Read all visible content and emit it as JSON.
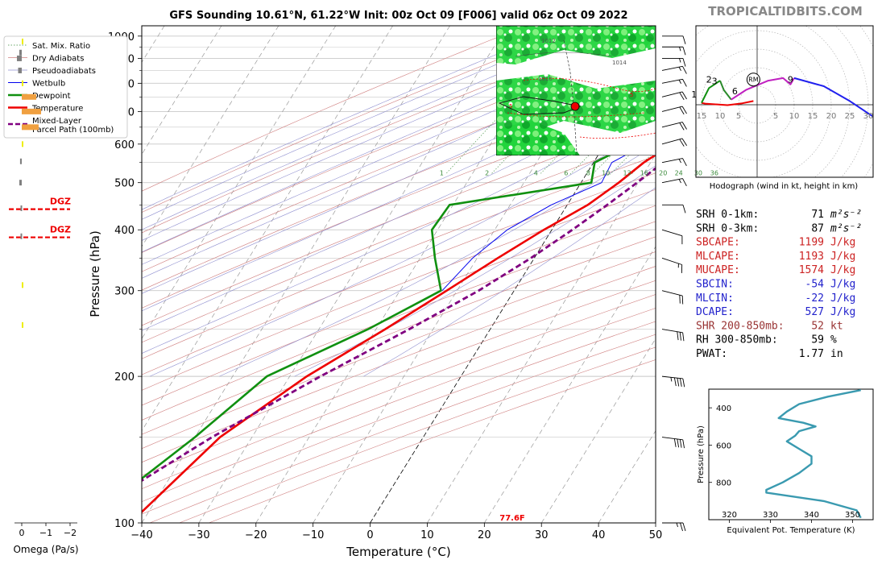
{
  "title": "GFS Sounding 10.61°N, 61.22°W Init: 00z Oct 09 [F006] valid 06z Oct 09 2022",
  "watermark": "TROPICALTIDBITS.COM",
  "colors": {
    "temperature": "#ee0000",
    "dewpoint": "#109010",
    "wetbulb": "#0000ee",
    "parcel": "#800080",
    "dry_adiabat": "#d08080",
    "pseudo_adiabat": "#9090d0",
    "mixing_ratio": "#3a8a3a",
    "red_param": "#cc2222",
    "blue_param": "#2222cc",
    "brown_param": "#993333",
    "theta_e": "#3a9ab0",
    "dgz": "#ee0000"
  },
  "legend": [
    {
      "label": "Sat. Mix. Ratio",
      "style": "sat-mix"
    },
    {
      "label": "Dry Adiabats",
      "style": "dry"
    },
    {
      "label": "Pseudoadiabats",
      "style": "pseudo"
    },
    {
      "label": "Wetbulb",
      "style": "wetbulb"
    },
    {
      "label": "Dewpoint",
      "style": "dewpoint"
    },
    {
      "label": "Temperature",
      "style": "temperature"
    },
    {
      "label": "Mixed-Layer",
      "label2": "Parcel Path (100mb)",
      "style": "parcel"
    }
  ],
  "omega": {
    "xlabel": "Omega (Pa/s)",
    "ticks": [
      {
        "v": 0,
        "label": "0"
      },
      {
        "v": -1,
        "label": "−1"
      },
      {
        "v": -2,
        "label": "−2"
      }
    ],
    "dgz_label": "DGZ",
    "dgz_levels": [
      386,
      441
    ],
    "bars": [
      {
        "p": 255,
        "v": -0.05,
        "color": "#eeee00"
      },
      {
        "p": 308,
        "v": -0.05,
        "color": "#eeee00"
      },
      {
        "p": 388,
        "v": 0.05,
        "color": "#808080"
      },
      {
        "p": 443,
        "v": 0.05,
        "color": "#808080"
      },
      {
        "p": 500,
        "v": 0.1,
        "color": "#808080"
      },
      {
        "p": 553,
        "v": 0.07,
        "color": "#808080"
      },
      {
        "p": 600,
        "v": -0.05,
        "color": "#eeee00"
      },
      {
        "p": 650,
        "v": -0.7,
        "color": "#f0a040"
      },
      {
        "p": 700,
        "v": -0.8,
        "color": "#f0a040"
      },
      {
        "p": 750,
        "v": -0.6,
        "color": "#f0a040"
      },
      {
        "p": 800,
        "v": -0.05,
        "color": "#eeee00"
      },
      {
        "p": 850,
        "v": 0.15,
        "color": "#808080"
      },
      {
        "p": 900,
        "v": 0.2,
        "color": "#808080"
      },
      {
        "p": 925,
        "v": 0.1,
        "color": "#808080"
      },
      {
        "p": 975,
        "v": -0.05,
        "color": "#eeee00"
      }
    ]
  },
  "chart_data": [
    {
      "type": "line",
      "subtype": "skew-t log-p",
      "xlabel": "Temperature (°C)",
      "ylabel": "Pressure (hPa)",
      "xlim": [
        -40,
        50
      ],
      "ylim": [
        1050,
        100
      ],
      "x_ticks": [
        {
          "v": -40,
          "label": "−40"
        },
        {
          "v": -30,
          "label": "−30"
        },
        {
          "v": -20,
          "label": "−20"
        },
        {
          "v": -10,
          "label": "−10"
        },
        {
          "v": 0,
          "label": "0"
        },
        {
          "v": 10,
          "label": "10"
        },
        {
          "v": 20,
          "label": "20"
        },
        {
          "v": 30,
          "label": "30"
        },
        {
          "v": 40,
          "label": "40"
        },
        {
          "v": 50,
          "label": "50"
        }
      ],
      "y_ticks": [
        {
          "v": 100,
          "label": "100"
        },
        {
          "v": 200,
          "label": "200"
        },
        {
          "v": 300,
          "label": "300"
        },
        {
          "v": 400,
          "label": "400"
        },
        {
          "v": 500,
          "label": "500"
        },
        {
          "v": 600,
          "label": "600"
        },
        {
          "v": 700,
          "label": "700"
        },
        {
          "v": 800,
          "label": "800"
        },
        {
          "v": 900,
          "label": "900"
        },
        {
          "v": 1000,
          "label": "1000"
        }
      ],
      "isobars": [
        100,
        150,
        200,
        250,
        300,
        350,
        400,
        450,
        500,
        550,
        600,
        650,
        700,
        750,
        800,
        850,
        900,
        950,
        1000
      ],
      "mixing_ratio_labels": [
        "1",
        "2",
        "4",
        "6",
        "8",
        "10",
        "13",
        "16",
        "20",
        "24",
        "30",
        "36"
      ],
      "mixing_ratio_values": [
        1,
        2,
        4,
        6,
        8,
        10,
        13,
        16,
        20,
        24,
        30,
        36
      ],
      "surface_temp_label": "77.6F",
      "series": [
        {
          "name": "Temperature",
          "points": [
            [
              1000,
              25.6
            ],
            [
              975,
              25.2
            ],
            [
              950,
              24
            ],
            [
              925,
              24.4
            ],
            [
              900,
              25.6
            ],
            [
              875,
              26
            ],
            [
              850,
              25.2
            ],
            [
              800,
              22.6
            ],
            [
              750,
              19.4
            ],
            [
              700,
              16.8
            ],
            [
              650,
              14.6
            ],
            [
              600,
              11.8
            ],
            [
              550,
              8.8
            ],
            [
              500,
              6.6
            ],
            [
              450,
              3.6
            ],
            [
              400,
              -1.4
            ],
            [
              350,
              -6.4
            ],
            [
              300,
              -11.8
            ],
            [
              250,
              -18.4
            ],
            [
              200,
              -27
            ],
            [
              150,
              -35.6
            ],
            [
              100,
              -42
            ]
          ]
        },
        {
          "name": "Dewpoint",
          "points": [
            [
              1000,
              23.4
            ],
            [
              975,
              23.2
            ],
            [
              950,
              22.8
            ],
            [
              925,
              20.8
            ],
            [
              900,
              14.6
            ],
            [
              875,
              9.8
            ],
            [
              850,
              6.6
            ],
            [
              800,
              4.4
            ],
            [
              750,
              11.4
            ],
            [
              700,
              10.6
            ],
            [
              650,
              8.6
            ],
            [
              600,
              4.6
            ],
            [
              550,
              0.2
            ],
            [
              500,
              1.8
            ],
            [
              450,
              -20.6
            ],
            [
              400,
              -21
            ],
            [
              350,
              -17.4
            ],
            [
              300,
              -12.8
            ],
            [
              250,
              -21.4
            ],
            [
              200,
              -34
            ],
            [
              150,
              -40
            ],
            [
              100,
              -50
            ]
          ]
        },
        {
          "name": "Wetbulb",
          "points": [
            [
              1000,
              24
            ],
            [
              950,
              23.2
            ],
            [
              900,
              20
            ],
            [
              850,
              15
            ],
            [
              800,
              9.8
            ],
            [
              750,
              13
            ],
            [
              700,
              12
            ],
            [
              650,
              10.4
            ],
            [
              600,
              7.2
            ],
            [
              550,
              3.2
            ],
            [
              500,
              3.6
            ],
            [
              450,
              -2.8
            ],
            [
              400,
              -7.8
            ],
            [
              350,
              -10.8
            ],
            [
              300,
              -12.6
            ]
          ]
        },
        {
          "name": "Mixed-Layer Parcel Path (100mb)",
          "points": [
            [
              1010,
              26.2
            ],
            [
              975,
              24
            ],
            [
              950,
              23.2
            ],
            [
              900,
              22
            ],
            [
              850,
              21
            ],
            [
              800,
              20
            ],
            [
              750,
              18.8
            ],
            [
              700,
              17.2
            ],
            [
              650,
              15.8
            ],
            [
              600,
              14.2
            ],
            [
              550,
              12.2
            ],
            [
              500,
              9.8
            ],
            [
              450,
              7
            ],
            [
              400,
              3.6
            ],
            [
              350,
              -0.6
            ],
            [
              300,
              -6.2
            ],
            [
              250,
              -14.2
            ],
            [
              200,
              -24.6
            ],
            [
              150,
              -37
            ],
            [
              100,
              -52
            ]
          ]
        }
      ]
    },
    {
      "type": "line",
      "subtype": "hodograph",
      "xlabel": "Hodograph (wind in kt, height in km)",
      "ring_labels": [
        "15",
        "10",
        "5",
        "5",
        "10",
        "15",
        "20",
        "25",
        "30"
      ],
      "rm_label": "RM",
      "height_labels": [
        "1",
        "2",
        "3",
        "6",
        "9"
      ],
      "series": [
        {
          "name": "0-1 km",
          "color": "#ee0000",
          "points": [
            [
              -1,
              1
            ],
            [
              -4,
              0.4
            ],
            [
              -8,
              -0.1
            ],
            [
              -14,
              0.3
            ],
            [
              -15,
              0.5
            ]
          ]
        },
        {
          "name": "1-3 km",
          "color": "#109010",
          "points": [
            [
              -15,
              0.5
            ],
            [
              -14,
              2.5
            ],
            [
              -13,
              4.5
            ],
            [
              -10,
              6.5
            ]
          ]
        },
        {
          "name": "3-6 km",
          "color": "#2a8a2a",
          "points": [
            [
              -10,
              6.5
            ],
            [
              -9,
              4
            ],
            [
              -7,
              1.4
            ]
          ]
        },
        {
          "name": "6-9 km",
          "color": "#c020c0",
          "points": [
            [
              -7,
              1.4
            ],
            [
              -3,
              4
            ],
            [
              3,
              6.5
            ],
            [
              7,
              7.2
            ],
            [
              9,
              5.5
            ],
            [
              10,
              7.2
            ]
          ]
        },
        {
          "name": "9-12 km",
          "color": "#2020ee",
          "points": [
            [
              10,
              7.2
            ],
            [
              18,
              5
            ],
            [
              25,
              1
            ],
            [
              31,
              -3
            ],
            [
              33,
              -4.5
            ]
          ]
        }
      ],
      "rm_point": [
        -1,
        6.8
      ],
      "height_label_positions": [
        [
          -17,
          2
        ],
        [
          -13,
          6
        ],
        [
          -11.5,
          5.5
        ],
        [
          -6,
          2.8
        ],
        [
          9,
          6
        ]
      ]
    },
    {
      "type": "line",
      "subtype": "theta-e profile",
      "xlabel": "Equivalent Pot. Temperature (K)",
      "ylabel": "Pressure (hPa)",
      "xlim": [
        315,
        355
      ],
      "ylim": [
        1000,
        300
      ],
      "x_ticks": [
        {
          "v": 320,
          "label": "320"
        },
        {
          "v": 330,
          "label": "330"
        },
        {
          "v": 340,
          "label": "340"
        },
        {
          "v": 350,
          "label": "350"
        }
      ],
      "y_ticks": [
        {
          "v": 400,
          "label": "400"
        },
        {
          "v": 600,
          "label": "600"
        },
        {
          "v": 800,
          "label": "800"
        }
      ],
      "points": [
        [
          305,
          352
        ],
        [
          340,
          344
        ],
        [
          380,
          337
        ],
        [
          420,
          334
        ],
        [
          455,
          332
        ],
        [
          480,
          338
        ],
        [
          500,
          341
        ],
        [
          525,
          337
        ],
        [
          550,
          336
        ],
        [
          580,
          334
        ],
        [
          620,
          337
        ],
        [
          660,
          340
        ],
        [
          700,
          340
        ],
        [
          750,
          337
        ],
        [
          800,
          333
        ],
        [
          840,
          329
        ],
        [
          855,
          329
        ],
        [
          900,
          343
        ],
        [
          950,
          351
        ],
        [
          990,
          352
        ]
      ]
    }
  ],
  "params": [
    {
      "label": "SRH 0-1km:",
      "value": "71",
      "unit": "m²s⁻²",
      "color": "#000000"
    },
    {
      "label": "SRH 0-3km:",
      "value": "87",
      "unit": "m²s⁻²",
      "color": "#000000"
    },
    {
      "label": "SBCAPE:",
      "value": "1199",
      "unit": "J/kg",
      "color": "#cc2222"
    },
    {
      "label": "MLCAPE:",
      "value": "1193",
      "unit": "J/kg",
      "color": "#cc2222"
    },
    {
      "label": "MUCAPE:",
      "value": "1574",
      "unit": "J/kg",
      "color": "#cc2222"
    },
    {
      "label": "SBCIN:",
      "value": "-54",
      "unit": "J/kg",
      "color": "#2222cc"
    },
    {
      "label": "MLCIN:",
      "value": "-22",
      "unit": "J/kg",
      "color": "#2222cc"
    },
    {
      "label": "DCAPE:",
      "value": "527",
      "unit": "J/kg",
      "color": "#2222cc"
    },
    {
      "label": "SHR 200-850mb:",
      "value": "52",
      "unit": "kt",
      "color": "#993333"
    },
    {
      "label": "RH 300-850mb:",
      "value": "59",
      "unit": "%",
      "color": "#000000"
    },
    {
      "label": "PWAT:",
      "value": "1.77",
      "unit": "in",
      "color": "#000000"
    }
  ],
  "wind_barbs": [
    {
      "p": 100,
      "u": -25,
      "v": 0
    },
    {
      "p": 150,
      "u": -40,
      "v": 5
    },
    {
      "p": 200,
      "u": -45,
      "v": 5
    },
    {
      "p": 250,
      "u": -30,
      "v": 5
    },
    {
      "p": 300,
      "u": -20,
      "v": 5
    },
    {
      "p": 350,
      "u": -15,
      "v": 5
    },
    {
      "p": 400,
      "u": -10,
      "v": 3
    },
    {
      "p": 450,
      "u": -10,
      "v": 0
    },
    {
      "p": 500,
      "u": -15,
      "v": -3
    },
    {
      "p": 550,
      "u": -15,
      "v": -3
    },
    {
      "p": 600,
      "u": -18,
      "v": -5
    },
    {
      "p": 650,
      "u": -20,
      "v": -5
    },
    {
      "p": 700,
      "u": -20,
      "v": -5
    },
    {
      "p": 750,
      "u": -20,
      "v": -5
    },
    {
      "p": 800,
      "u": -15,
      "v": -3
    },
    {
      "p": 850,
      "u": -15,
      "v": -3
    },
    {
      "p": 900,
      "u": -15,
      "v": 0
    },
    {
      "p": 950,
      "u": -15,
      "v": 0
    },
    {
      "p": 1000,
      "u": -10,
      "v": 0
    }
  ],
  "map_inset": {
    "contour_labels": [
      "1010",
      "1012",
      "1014",
      "5",
      "5"
    ]
  }
}
